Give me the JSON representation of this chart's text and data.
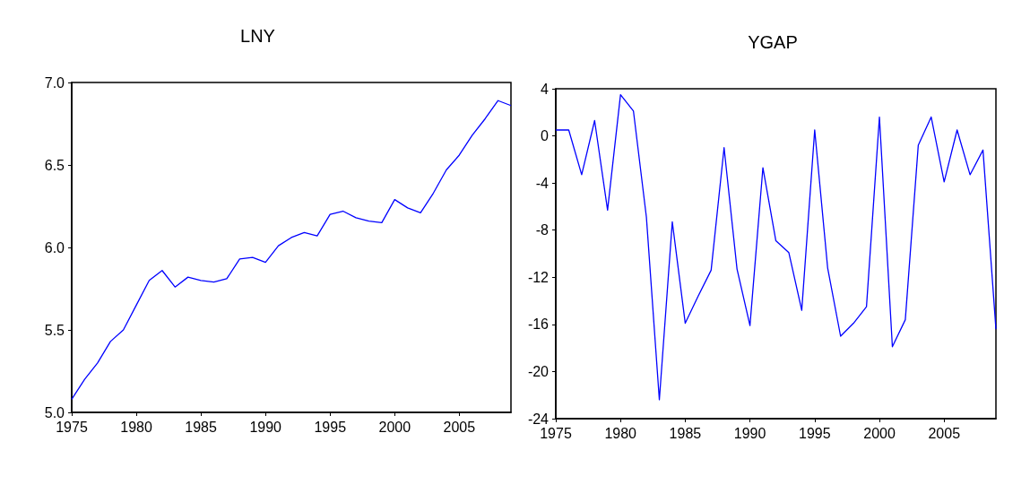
{
  "chart_data": [
    {
      "type": "line",
      "title": "LNY",
      "x": [
        1975,
        1976,
        1977,
        1978,
        1979,
        1980,
        1981,
        1982,
        1983,
        1984,
        1985,
        1986,
        1987,
        1988,
        1989,
        1990,
        1991,
        1992,
        1993,
        1994,
        1995,
        1996,
        1997,
        1998,
        1999,
        2000,
        2001,
        2002,
        2003,
        2004,
        2005,
        2006,
        2007,
        2008,
        2009
      ],
      "series": [
        {
          "color": "#0000ff",
          "values": [
            5.08,
            5.2,
            5.3,
            5.43,
            5.5,
            5.65,
            5.8,
            5.86,
            5.76,
            5.82,
            5.8,
            5.79,
            5.81,
            5.93,
            5.94,
            5.91,
            6.01,
            6.06,
            6.09,
            6.07,
            6.2,
            6.22,
            6.18,
            6.16,
            6.15,
            6.29,
            6.24,
            6.21,
            6.33,
            6.47,
            6.56,
            6.68,
            6.78,
            6.89,
            6.86
          ]
        }
      ],
      "xlim": [
        1975,
        2009
      ],
      "xticks": [
        1975,
        1980,
        1985,
        1990,
        1995,
        2000,
        2005
      ],
      "ylim": [
        5.0,
        7.0
      ],
      "yticks": [
        {
          "value": 5.0,
          "label": "5.0"
        },
        {
          "value": 5.5,
          "label": "5.5"
        },
        {
          "value": 6.0,
          "label": "6.0"
        },
        {
          "value": 6.5,
          "label": "6.5"
        },
        {
          "value": 7.0,
          "label": "7.0"
        }
      ],
      "grid": false,
      "marker": "none",
      "line_style": "solid"
    },
    {
      "type": "line",
      "title": "YGAP",
      "x": [
        1975,
        1976,
        1977,
        1978,
        1979,
        1980,
        1981,
        1982,
        1983,
        1984,
        1985,
        1986,
        1987,
        1988,
        1989,
        1990,
        1991,
        1992,
        1993,
        1994,
        1995,
        1996,
        1997,
        1998,
        1999,
        2000,
        2001,
        2002,
        2003,
        2004,
        2005,
        2006,
        2007,
        2008,
        2009
      ],
      "series": [
        {
          "color": "#0000ff",
          "values": [
            0.5,
            0.5,
            -3.3,
            1.3,
            -6.3,
            3.5,
            2.1,
            -6.9,
            -22.4,
            -7.3,
            -15.9,
            -13.6,
            -11.4,
            -1.0,
            -11.3,
            -16.1,
            -2.7,
            -8.9,
            -9.9,
            -14.8,
            0.5,
            -11.2,
            -17.0,
            -15.9,
            -14.5,
            1.6,
            -17.9,
            -15.6,
            -0.8,
            1.6,
            -3.9,
            0.5,
            -3.3,
            -1.2,
            -16.4
          ]
        }
      ],
      "xlim": [
        1975,
        2009
      ],
      "xticks": [
        1975,
        1980,
        1985,
        1990,
        1995,
        2000,
        2005
      ],
      "ylim": [
        -24,
        4
      ],
      "yticks": [
        -24,
        -20,
        -16,
        -12,
        -8,
        -4,
        0,
        4
      ],
      "grid": false,
      "marker": "none",
      "line_style": "solid"
    }
  ]
}
